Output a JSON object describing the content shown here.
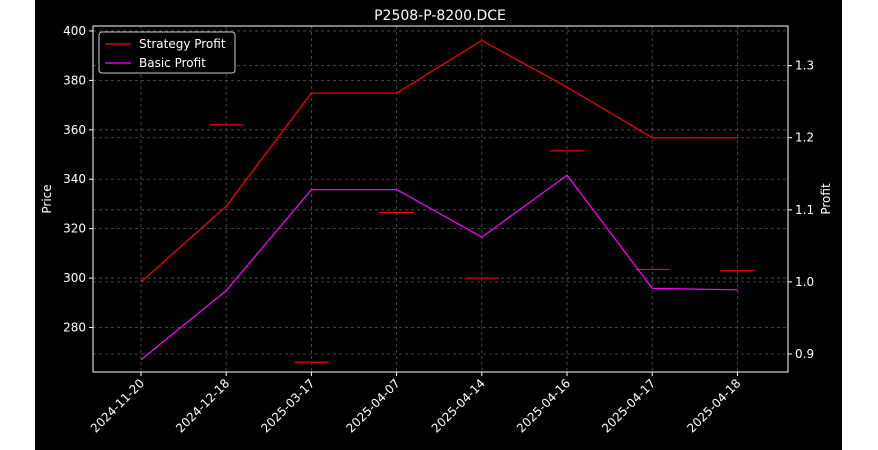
{
  "chart_data": {
    "type": "line",
    "title": "P2508-P-8200.DCE",
    "xlabel": "",
    "ylabel_left": "Price",
    "ylabel_right": "Profit",
    "categories": [
      "2024-11-20",
      "2024-12-18",
      "2025-03-17",
      "2025-04-07",
      "2025-04-14",
      "2025-04-16",
      "2025-04-17",
      "2025-04-18"
    ],
    "left_axis": {
      "ylim": [
        262,
        402
      ],
      "ticks": [
        280,
        300,
        320,
        340,
        360,
        380,
        400
      ]
    },
    "right_axis": {
      "ylim": [
        0.875,
        1.355
      ],
      "ticks": [
        0.9,
        1.0,
        1.1,
        1.2,
        1.3
      ]
    },
    "price_markers": {
      "axis": "left",
      "color": "#ff0000",
      "values": [
        null,
        362,
        266,
        326.5,
        300,
        351.5,
        303.5,
        303
      ]
    },
    "series": [
      {
        "name": "Strategy Profit",
        "axis": "right",
        "color": "#ff0000",
        "values": [
          1.0,
          1.105,
          1.262,
          1.262,
          1.335,
          1.27,
          1.2,
          1.2
        ]
      },
      {
        "name": "Basic Profit",
        "axis": "right",
        "color": "#ff00ff",
        "values": [
          0.892,
          0.988,
          1.128,
          1.128,
          1.062,
          1.148,
          0.991,
          0.989
        ]
      }
    ],
    "grid": true,
    "legend": "top-left",
    "colors": {
      "background": "#000000",
      "foreground": "#ffffff",
      "grid": "#555555"
    }
  }
}
